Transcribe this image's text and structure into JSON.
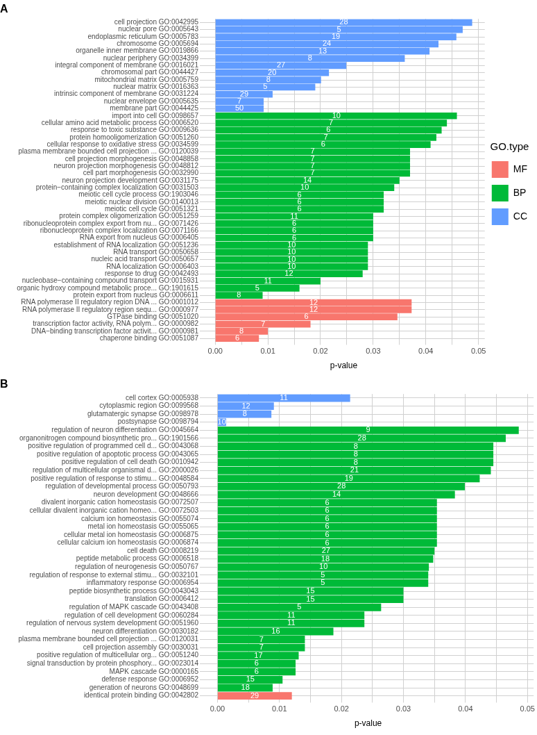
{
  "chart_data": [
    {
      "type": "bar",
      "orientation": "horizontal",
      "title": "A",
      "xlabel": "p-value",
      "legend": "right",
      "legend_title": "GO.type",
      "grid": true,
      "categories": [
        "cell projection GO:0042995",
        "nuclear pore GO:0005643",
        "endoplasmic reticulum GO:0005783",
        "chromosome GO:0005694",
        "organelle inner membrane GO:0019866",
        "nuclear periphery GO:0034399",
        "integral component of membrane GO:0016021",
        "chromosomal part GO:0044427",
        "mitochondrial matrix GO:0005759",
        "nuclear matrix GO:0016363",
        "intrinsic component of membrane GO:0031224",
        "nuclear envelope GO:0005635",
        "membrane part GO:0044425",
        "import into cell GO:0098657",
        "cellular amino acid metabolic process GO:0006520",
        "response to toxic substance GO:0009636",
        "protein homooligomerization GO:0051260",
        "cellular response to oxidative stress GO:0034599",
        "plasma membrane bounded cell projection ... GO:0120039",
        "cell projection morphogenesis GO:0048858",
        "neuron projection morphogenesis GO:0048812",
        "cell part morphogenesis GO:0032990",
        "neuron projection development GO:0031175",
        "protein−containing complex localization GO:0031503",
        "meiotic cell cycle process GO:1903046",
        "meiotic nuclear division GO:0140013",
        "meiotic cell cycle GO:0051321",
        "protein complex oligomerization GO:0051259",
        "ribonucleoprotein complex export from nu... GO:0071426",
        "ribonucleoprotein complex localization GO:0071166",
        "RNA export from nucleus GO:0006405",
        "establishment of RNA localization GO:0051236",
        "RNA transport GO:0050658",
        "nucleic acid transport GO:0050657",
        "RNA localization GO:0006403",
        "response to drug GO:0042493",
        "nucleobase−containing compound transport GO:0015931",
        "organic hydroxy compound metabolic proce... GO:1901615",
        "protein export from nucleus GO:0006611",
        "RNA polymerase II regulatory region DNA ... GO:0001012",
        "RNA polymerase II regulatory region sequ... GO:0000977",
        "GTPase binding GO:0051020",
        "transcription factor activity, RNA polym... GO:0000982",
        "DNA−binding transcription factor activit... GO:0000981",
        "chaperone binding GO:0051087"
      ],
      "xlim": [
        -0.0024,
        0.0512
      ],
      "xticks": [
        {
          "value": 0,
          "label": "0.00"
        },
        {
          "value": 0.005,
          "label": null
        },
        {
          "value": 0.01,
          "label": "0.01"
        },
        {
          "value": 0.015,
          "label": null
        },
        {
          "value": 0.02,
          "label": "0.02"
        },
        {
          "value": 0.025,
          "label": null
        },
        {
          "value": 0.03,
          "label": "0.03"
        },
        {
          "value": 0.035,
          "label": null
        },
        {
          "value": 0.04,
          "label": "0.04"
        },
        {
          "value": 0.045,
          "label": null
        },
        {
          "value": 0.05,
          "label": "0.05"
        }
      ],
      "series": [
        {
          "name": "MF",
          "color": "#f8766d",
          "values": [
            null,
            null,
            null,
            null,
            null,
            null,
            null,
            null,
            null,
            null,
            null,
            null,
            null,
            null,
            null,
            null,
            null,
            null,
            null,
            null,
            null,
            null,
            null,
            null,
            null,
            null,
            null,
            null,
            null,
            null,
            null,
            null,
            null,
            null,
            null,
            null,
            null,
            null,
            null,
            0.0373,
            0.0373,
            0.0346,
            0.0181,
            0.01,
            0.0083
          ]
        },
        {
          "name": "BP",
          "color": "#00ba38",
          "values": [
            null,
            null,
            null,
            null,
            null,
            null,
            null,
            null,
            null,
            null,
            null,
            null,
            null,
            0.0459,
            0.044,
            0.043,
            0.042,
            0.0409,
            0.037,
            0.037,
            0.037,
            0.037,
            0.035,
            0.034,
            0.032,
            0.032,
            0.032,
            0.03,
            0.03,
            0.03,
            0.03,
            0.029,
            0.029,
            0.029,
            0.029,
            0.028,
            0.02,
            0.016,
            0.009,
            null,
            null,
            null,
            null,
            null,
            null
          ]
        },
        {
          "name": "CC",
          "color": "#619cff",
          "values": [
            0.0488,
            0.047,
            0.0458,
            0.0424,
            0.0407,
            0.036,
            0.0249,
            0.0216,
            0.0201,
            0.019,
            0.0109,
            0.0092,
            0.0092,
            null,
            null,
            null,
            null,
            null,
            null,
            null,
            null,
            null,
            null,
            null,
            null,
            null,
            null,
            null,
            null,
            null,
            null,
            null,
            null,
            null,
            null,
            null,
            null,
            null,
            null,
            null,
            null,
            null,
            null,
            null,
            null
          ]
        }
      ],
      "annotations": [
        {
          "text": "28",
          "x": 0.0244,
          "y": "cell projection GO:0042995"
        },
        {
          "text": "5",
          "x": 0.0235,
          "y": "nuclear pore GO:0005643"
        },
        {
          "text": "19",
          "x": 0.0229,
          "y": "endoplasmic reticulum GO:0005783"
        },
        {
          "text": "24",
          "x": 0.0212,
          "y": "chromosome GO:0005694"
        },
        {
          "text": "13",
          "x": 0.0204,
          "y": "organelle inner membrane GO:0019866"
        },
        {
          "text": "8",
          "x": 0.018,
          "y": "nuclear periphery GO:0034399"
        },
        {
          "text": "27",
          "x": 0.0125,
          "y": "integral component of membrane GO:0016021"
        },
        {
          "text": "20",
          "x": 0.0108,
          "y": "chromosomal part GO:0044427"
        },
        {
          "text": "8",
          "x": 0.0101,
          "y": "mitochondrial matrix GO:0005759"
        },
        {
          "text": "5",
          "x": 0.0095,
          "y": "nuclear matrix GO:0016363"
        },
        {
          "text": "29",
          "x": 0.0055,
          "y": "intrinsic component of membrane GO:0031224"
        },
        {
          "text": "7",
          "x": 0.0046,
          "y": "nuclear envelope GO:0005635"
        },
        {
          "text": "50",
          "x": 0.0046,
          "y": "membrane part GO:0044425"
        },
        {
          "text": "10",
          "x": 0.023,
          "y": "import into cell GO:0098657"
        },
        {
          "text": "7",
          "x": 0.022,
          "y": "cellular amino acid metabolic process GO:0006520"
        },
        {
          "text": "6",
          "x": 0.0215,
          "y": "response to toxic substance GO:0009636"
        },
        {
          "text": "7",
          "x": 0.021,
          "y": "protein homooligomerization GO:0051260"
        },
        {
          "text": "6",
          "x": 0.0205,
          "y": "cellular response to oxidative stress GO:0034599"
        },
        {
          "text": "7",
          "x": 0.0185,
          "y": "plasma membrane bounded cell projection ... GO:0120039"
        },
        {
          "text": "7",
          "x": 0.0185,
          "y": "cell projection morphogenesis GO:0048858"
        },
        {
          "text": "7",
          "x": 0.0185,
          "y": "neuron projection morphogenesis GO:0048812"
        },
        {
          "text": "7",
          "x": 0.0185,
          "y": "cell part morphogenesis GO:0032990"
        },
        {
          "text": "14",
          "x": 0.0175,
          "y": "neuron projection development GO:0031175"
        },
        {
          "text": "10",
          "x": 0.017,
          "y": "protein−containing complex localization GO:0031503"
        },
        {
          "text": "6",
          "x": 0.016,
          "y": "meiotic cell cycle process GO:1903046"
        },
        {
          "text": "6",
          "x": 0.016,
          "y": "meiotic nuclear division GO:0140013"
        },
        {
          "text": "6",
          "x": 0.016,
          "y": "meiotic cell cycle GO:0051321"
        },
        {
          "text": "11",
          "x": 0.015,
          "y": "protein complex oligomerization GO:0051259"
        },
        {
          "text": "6",
          "x": 0.015,
          "y": "ribonucleoprotein complex export from nu... GO:0071426"
        },
        {
          "text": "6",
          "x": 0.015,
          "y": "ribonucleoprotein complex localization GO:0071166"
        },
        {
          "text": "6",
          "x": 0.015,
          "y": "RNA export from nucleus GO:0006405"
        },
        {
          "text": "10",
          "x": 0.0145,
          "y": "establishment of RNA localization GO:0051236"
        },
        {
          "text": "10",
          "x": 0.0145,
          "y": "RNA transport GO:0050658"
        },
        {
          "text": "10",
          "x": 0.0145,
          "y": "nucleic acid transport GO:0050657"
        },
        {
          "text": "10",
          "x": 0.0145,
          "y": "RNA localization GO:0006403"
        },
        {
          "text": "12",
          "x": 0.014,
          "y": "response to drug GO:0042493"
        },
        {
          "text": "11",
          "x": 0.01,
          "y": "nucleobase−containing compound transport GO:0015931"
        },
        {
          "text": "5",
          "x": 0.008,
          "y": "organic hydroxy compound metabolic proce... GO:1901615"
        },
        {
          "text": "8",
          "x": 0.0045,
          "y": "protein export from nucleus GO:0006611"
        },
        {
          "text": "12",
          "x": 0.0187,
          "y": "RNA polymerase II regulatory region DNA ... GO:0001012"
        },
        {
          "text": "12",
          "x": 0.0187,
          "y": "RNA polymerase II regulatory region sequ... GO:0000977"
        },
        {
          "text": "6",
          "x": 0.0173,
          "y": "GTPase binding GO:0051020"
        },
        {
          "text": "7",
          "x": 0.0091,
          "y": "transcription factor activity, RNA polym... GO:0000982"
        },
        {
          "text": "8",
          "x": 0.005,
          "y": "DNA−binding transcription factor activit... GO:0000981"
        },
        {
          "text": "6",
          "x": 0.0042,
          "y": "chaperone binding GO:0051087"
        }
      ]
    },
    {
      "type": "bar",
      "orientation": "horizontal",
      "title": "B",
      "xlabel": "p-value",
      "grid": true,
      "categories": [
        "cell cortex GO:0005938",
        "cytoplasmic region GO:0099568",
        "glutamatergic synapse GO:0098978",
        "postsynapse GO:0098794",
        "regulation of neuron differentiation GO:0045664",
        "organonitrogen compound biosynthetic pro... GO:1901566",
        "positive regulation of programmed cell d... GO:0043068",
        "positive regulation of apoptotic process GO:0043065",
        "positive regulation of cell death GO:0010942",
        "regulation of multicellular organismal d... GO:2000026",
        "positive regulation of response to stimu... GO:0048584",
        "regulation of developmental process GO:0050793",
        "neuron development GO:0048666",
        "divalent inorganic cation homeostasis GO:0072507",
        "cellular divalent inorganic cation homeo... GO:0072503",
        "calcium ion homeostasis GO:0055074",
        "metal ion homeostasis GO:0055065",
        "cellular metal ion homeostasis GO:0006875",
        "cellular calcium ion homeostasis GO:0006874",
        "cell death GO:0008219",
        "peptide metabolic process GO:0006518",
        "regulation of neurogenesis GO:0050767",
        "regulation of response to external stimu... GO:0032101",
        "inflammatory response GO:0006954",
        "peptide biosynthetic process GO:0043043",
        "translation GO:0006412",
        "regulation of MAPK cascade GO:0043408",
        "regulation of cell development GO:0060284",
        "regulation of nervous system development GO:0051960",
        "neuron differentiation GO:0030182",
        "plasma membrane bounded cell projection ... GO:0120031",
        "cell projection assembly GO:0030031",
        "positive regulation of multicellular org... GO:0051240",
        "signal transduction by protein phosphory... GO:0023014",
        "MAPK cascade GO:0000165",
        "defense response GO:0006952",
        "generation of neurons GO:0048699",
        "identical protein binding GO:0042802"
      ],
      "xlim": [
        -0.0024,
        0.051
      ],
      "xticks": [
        {
          "value": 0,
          "label": "0.00"
        },
        {
          "value": 0.005,
          "label": null
        },
        {
          "value": 0.01,
          "label": "0.01"
        },
        {
          "value": 0.015,
          "label": null
        },
        {
          "value": 0.02,
          "label": "0.02"
        },
        {
          "value": 0.025,
          "label": null
        },
        {
          "value": 0.03,
          "label": "0.03"
        },
        {
          "value": 0.035,
          "label": null
        },
        {
          "value": 0.04,
          "label": "0.04"
        },
        {
          "value": 0.045,
          "label": null
        },
        {
          "value": 0.05,
          "label": "0.05"
        }
      ],
      "series": [
        {
          "color": "#f8766d",
          "values": [
            null,
            null,
            null,
            null,
            null,
            null,
            null,
            null,
            null,
            null,
            null,
            null,
            null,
            null,
            null,
            null,
            null,
            null,
            null,
            null,
            null,
            null,
            null,
            null,
            null,
            null,
            null,
            null,
            null,
            null,
            null,
            null,
            null,
            null,
            null,
            null,
            null,
            0.012
          ]
        },
        {
          "color": "#00ba38",
          "values": [
            null,
            null,
            null,
            null,
            0.0486,
            0.0465,
            0.0445,
            0.0445,
            0.0445,
            0.0441,
            0.0423,
            0.0399,
            0.0383,
            0.0354,
            0.0354,
            0.0354,
            0.0354,
            0.0354,
            0.0354,
            0.035,
            0.0348,
            0.0341,
            0.034,
            0.034,
            0.03,
            0.03,
            0.0264,
            0.0237,
            0.0237,
            0.0187,
            0.0141,
            0.0141,
            0.0131,
            0.0126,
            0.0126,
            0.0105,
            0.0089,
            null
          ]
        },
        {
          "color": "#619cff",
          "values": [
            0.0214,
            0.0091,
            0.0087,
            0.0014,
            null,
            null,
            null,
            null,
            null,
            null,
            null,
            null,
            null,
            null,
            null,
            null,
            null,
            null,
            null,
            null,
            null,
            null,
            null,
            null,
            null,
            null,
            null,
            null,
            null,
            null,
            null,
            null,
            null,
            null,
            null,
            null,
            null,
            null
          ]
        }
      ],
      "annotations": [
        {
          "text": "11",
          "x": 0.0107,
          "y": "cell cortex GO:0005938"
        },
        {
          "text": "12",
          "x": 0.0046,
          "y": "cytoplasmic region GO:0099568"
        },
        {
          "text": "8",
          "x": 0.0044,
          "y": "glutamatergic synapse GO:0098978"
        },
        {
          "text": "10",
          "x": 0.0007,
          "y": "postsynapse GO:0098794"
        },
        {
          "text": "9",
          "x": 0.0243,
          "y": "regulation of neuron differentiation GO:0045664"
        },
        {
          "text": "28",
          "x": 0.0233,
          "y": "organonitrogen compound biosynthetic pro... GO:1901566"
        },
        {
          "text": "8",
          "x": 0.0223,
          "y": "positive regulation of programmed cell d... GO:0043068"
        },
        {
          "text": "8",
          "x": 0.0223,
          "y": "positive regulation of apoptotic process GO:0043065"
        },
        {
          "text": "8",
          "x": 0.0223,
          "y": "positive regulation of cell death GO:0010942"
        },
        {
          "text": "21",
          "x": 0.0221,
          "y": "regulation of multicellular organismal d... GO:2000026"
        },
        {
          "text": "19",
          "x": 0.0212,
          "y": "positive regulation of response to stimu... GO:0048584"
        },
        {
          "text": "28",
          "x": 0.02,
          "y": "regulation of developmental process GO:0050793"
        },
        {
          "text": "14",
          "x": 0.0192,
          "y": "neuron development GO:0048666"
        },
        {
          "text": "6",
          "x": 0.0177,
          "y": "divalent inorganic cation homeostasis GO:0072507"
        },
        {
          "text": "6",
          "x": 0.0177,
          "y": "cellular divalent inorganic cation homeo... GO:0072503"
        },
        {
          "text": "6",
          "x": 0.0177,
          "y": "calcium ion homeostasis GO:0055074"
        },
        {
          "text": "6",
          "x": 0.0177,
          "y": "metal ion homeostasis GO:0055065"
        },
        {
          "text": "6",
          "x": 0.0177,
          "y": "cellular metal ion homeostasis GO:0006875"
        },
        {
          "text": "6",
          "x": 0.0177,
          "y": "cellular calcium ion homeostasis GO:0006874"
        },
        {
          "text": "27",
          "x": 0.0175,
          "y": "cell death GO:0008219"
        },
        {
          "text": "18",
          "x": 0.0174,
          "y": "peptide metabolic process GO:0006518"
        },
        {
          "text": "10",
          "x": 0.0171,
          "y": "regulation of neurogenesis GO:0050767"
        },
        {
          "text": "5",
          "x": 0.017,
          "y": "regulation of response to external stimu... GO:0032101"
        },
        {
          "text": "5",
          "x": 0.017,
          "y": "inflammatory response GO:0006954"
        },
        {
          "text": "15",
          "x": 0.015,
          "y": "peptide biosynthetic process GO:0043043"
        },
        {
          "text": "15",
          "x": 0.015,
          "y": "translation GO:0006412"
        },
        {
          "text": "5",
          "x": 0.0132,
          "y": "regulation of MAPK cascade GO:0043408"
        },
        {
          "text": "11",
          "x": 0.0119,
          "y": "regulation of cell development GO:0060284"
        },
        {
          "text": "11",
          "x": 0.0119,
          "y": "regulation of nervous system development GO:0051960"
        },
        {
          "text": "16",
          "x": 0.0094,
          "y": "neuron differentiation GO:0030182"
        },
        {
          "text": "7",
          "x": 0.0071,
          "y": "plasma membrane bounded cell projection ... GO:0120031"
        },
        {
          "text": "7",
          "x": 0.0071,
          "y": "cell projection assembly GO:0030031"
        },
        {
          "text": "17",
          "x": 0.0066,
          "y": "positive regulation of multicellular org... GO:0051240"
        },
        {
          "text": "6",
          "x": 0.0063,
          "y": "signal transduction by protein phosphory... GO:0023014"
        },
        {
          "text": "6",
          "x": 0.0063,
          "y": "MAPK cascade GO:0000165"
        },
        {
          "text": "15",
          "x": 0.0053,
          "y": "defense response GO:0006952"
        },
        {
          "text": "18",
          "x": 0.0045,
          "y": "generation of neurons GO:0048699"
        },
        {
          "text": "29",
          "x": 0.006,
          "y": "identical protein binding GO:0042802"
        }
      ]
    }
  ]
}
